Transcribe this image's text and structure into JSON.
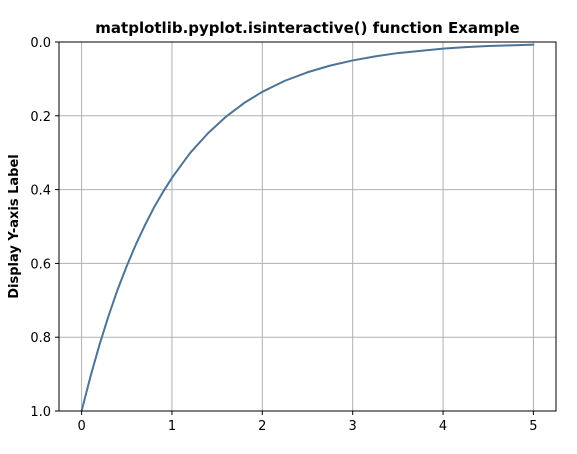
{
  "chart_data": {
    "type": "line",
    "title": "matplotlib.pyplot.isinteractive() function Example",
    "xlabel": "",
    "ylabel": "Display Y-axis Label",
    "xlim": [
      -0.25,
      5.25
    ],
    "ylim": [
      1.0,
      0.0
    ],
    "y_axis_inverted": true,
    "grid": true,
    "xticks": [
      0,
      1,
      2,
      3,
      4,
      5
    ],
    "xtick_labels": [
      "0",
      "1",
      "2",
      "3",
      "4",
      "5"
    ],
    "yticks": [
      0.0,
      0.2,
      0.4,
      0.6,
      0.8,
      1.0
    ],
    "ytick_labels": [
      "0.0",
      "0.2",
      "0.4",
      "0.6",
      "0.8",
      "1.0"
    ],
    "series": [
      {
        "color": "#4d7496",
        "x": [
          0,
          0.1,
          0.2,
          0.3,
          0.4,
          0.5,
          0.6,
          0.7,
          0.8,
          0.9,
          1.0,
          1.2,
          1.4,
          1.6,
          1.8,
          2.0,
          2.25,
          2.5,
          2.75,
          3.0,
          3.25,
          3.5,
          3.75,
          4.0,
          4.25,
          4.5,
          4.75,
          5.0
        ],
        "values": [
          1.0,
          0.905,
          0.819,
          0.741,
          0.67,
          0.607,
          0.549,
          0.497,
          0.449,
          0.407,
          0.368,
          0.301,
          0.247,
          0.202,
          0.165,
          0.135,
          0.105,
          0.082,
          0.064,
          0.05,
          0.039,
          0.03,
          0.024,
          0.018,
          0.014,
          0.011,
          0.009,
          0.007
        ]
      }
    ]
  }
}
